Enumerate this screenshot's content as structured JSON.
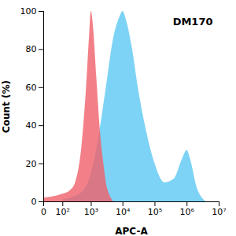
{
  "chart_data": {
    "type": "area",
    "annotation": "DM170",
    "x_label": "APC-A",
    "y_label": "Count (%)",
    "log": "x",
    "xlim": [
      0,
      10000000
    ],
    "xticks": [
      0,
      {
        "value": 100,
        "label": "10²"
      },
      {
        "value": 1000,
        "label": "10³"
      },
      {
        "value": 10000,
        "label": "10⁴"
      },
      {
        "value": 100000,
        "label": "10⁵"
      },
      {
        "value": 1000000,
        "label": "10⁶"
      },
      {
        "value": 10000000,
        "label": "10⁷"
      }
    ],
    "ylim": [
      0,
      100
    ],
    "yticks": [
      0,
      20,
      40,
      60,
      80,
      100
    ],
    "series": [
      {
        "color": "#5cc8f2",
        "x": [
          100,
          200,
          300,
          500,
          800,
          1200,
          2000,
          3000,
          5000,
          8000,
          10000,
          13000,
          20000,
          30000,
          50000,
          100000,
          200000,
          400000,
          700000,
          1000000,
          1300000,
          2000000,
          3000000,
          4000000
        ],
        "values": [
          1,
          2,
          3,
          5,
          10,
          20,
          40,
          60,
          85,
          97,
          100,
          95,
          80,
          60,
          40,
          20,
          10,
          12,
          22,
          27,
          22,
          8,
          2,
          0
        ]
      },
      {
        "color": "#f0606a",
        "x": [
          0,
          50,
          100,
          200,
          300,
          500,
          700,
          900,
          1000,
          1200,
          1500,
          2000,
          2500,
          3000,
          4000,
          5000
        ],
        "values": [
          2,
          3,
          4,
          6,
          10,
          30,
          60,
          90,
          100,
          90,
          65,
          35,
          20,
          10,
          3,
          0
        ]
      }
    ]
  }
}
